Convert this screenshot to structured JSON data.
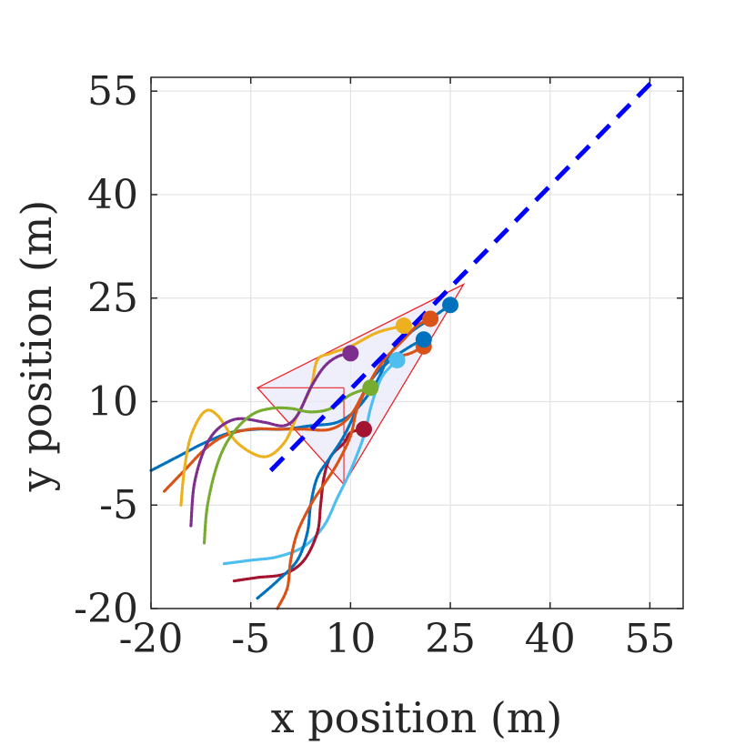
{
  "chart_data": {
    "type": "scatter",
    "title": "",
    "xlabel": "x position (m)",
    "ylabel": "y position (m)",
    "xlim": [
      -20,
      60
    ],
    "ylim": [
      -20,
      57
    ],
    "xticks": [
      -20,
      -5,
      10,
      25,
      40,
      55
    ],
    "yticks": [
      -20,
      -5,
      10,
      25,
      40,
      55
    ],
    "xtick_labels": [
      "-20",
      "-5",
      "10",
      "25",
      "40",
      "55"
    ],
    "ytick_labels": [
      "-20",
      "-5",
      "10",
      "25",
      "40",
      "55"
    ],
    "grid": true,
    "reference_line": {
      "style": "dashed",
      "color": "#0000ff",
      "points": [
        [
          -2,
          0
        ],
        [
          56,
          57
        ]
      ]
    },
    "formation_triangle": {
      "color": "#e8262a",
      "fill": "#e8eaf8",
      "vertices": [
        [
          27,
          27
        ],
        [
          -4,
          12
        ],
        [
          9,
          -2
        ]
      ],
      "inner_lines": [
        [
          [
            9,
            12
          ],
          [
            9,
            -2
          ]
        ],
        [
          [
            -4,
            12
          ],
          [
            9,
            12
          ]
        ]
      ]
    },
    "series": [
      {
        "color": "#0072bd",
        "start": [
          -20,
          0
        ],
        "end": [
          25,
          24
        ],
        "points": [
          [
            -20,
            0
          ],
          [
            -16,
            2
          ],
          [
            -12,
            4
          ],
          [
            -8,
            5.5
          ],
          [
            -4,
            6
          ],
          [
            0,
            6
          ],
          [
            4,
            6.5
          ],
          [
            8,
            7
          ],
          [
            11,
            9
          ],
          [
            14,
            13
          ],
          [
            16,
            17
          ],
          [
            19,
            20
          ],
          [
            22,
            22
          ],
          [
            25,
            24
          ]
        ]
      },
      {
        "color": "#d95319",
        "start": [
          -18,
          -3
        ],
        "end": [
          21,
          18
        ],
        "points": [
          [
            -18,
            -3
          ],
          [
            -15,
            0
          ],
          [
            -12,
            3
          ],
          [
            -9,
            5
          ],
          [
            -5,
            6
          ],
          [
            -1,
            6
          ],
          [
            3,
            6
          ],
          [
            7,
            6
          ],
          [
            10,
            8
          ],
          [
            13,
            13
          ],
          [
            16,
            16
          ],
          [
            19,
            17
          ],
          [
            21,
            18
          ]
        ]
      },
      {
        "color": "#edb120",
        "start": [
          -15.5,
          -5
        ],
        "end": [
          18,
          21
        ],
        "points": [
          [
            -15.5,
            -5
          ],
          [
            -15,
            0
          ],
          [
            -14,
            5
          ],
          [
            -12,
            8.5
          ],
          [
            -10,
            8
          ],
          [
            -7,
            4
          ],
          [
            -3,
            2
          ],
          [
            0,
            4
          ],
          [
            2,
            8
          ],
          [
            4,
            12
          ],
          [
            5,
            16
          ],
          [
            7,
            17
          ],
          [
            10,
            18
          ],
          [
            14,
            20
          ],
          [
            18,
            21
          ]
        ]
      },
      {
        "color": "#7e2f8e",
        "start": [
          -14,
          -8
        ],
        "end": [
          10,
          17
        ],
        "points": [
          [
            -14,
            -8
          ],
          [
            -13.5,
            -2
          ],
          [
            -12,
            3
          ],
          [
            -10,
            6
          ],
          [
            -7,
            7.5
          ],
          [
            -3,
            7
          ],
          [
            0,
            6.5
          ],
          [
            2,
            8
          ],
          [
            4,
            12
          ],
          [
            6,
            15
          ],
          [
            8,
            16.5
          ],
          [
            10,
            17
          ]
        ]
      },
      {
        "color": "#77ac30",
        "start": [
          -12,
          -10.5
        ],
        "end": [
          13,
          12
        ],
        "points": [
          [
            -12,
            -10.5
          ],
          [
            -11.5,
            -5
          ],
          [
            -10,
            1
          ],
          [
            -8,
            5
          ],
          [
            -5,
            8
          ],
          [
            -2,
            9
          ],
          [
            1,
            9
          ],
          [
            4,
            8.5
          ],
          [
            7,
            9
          ],
          [
            10,
            11
          ],
          [
            13,
            12
          ]
        ]
      },
      {
        "color": "#4dbeee",
        "start": [
          -9,
          -13.5
        ],
        "end": [
          17,
          16
        ],
        "points": [
          [
            -9,
            -13.5
          ],
          [
            -5,
            -13
          ],
          [
            -1,
            -12.5
          ],
          [
            3,
            -11
          ],
          [
            6,
            -8
          ],
          [
            8,
            -4
          ],
          [
            10,
            0
          ],
          [
            12,
            5
          ],
          [
            13,
            9
          ],
          [
            14,
            12
          ],
          [
            15,
            14
          ],
          [
            17,
            16
          ]
        ]
      },
      {
        "color": "#a2142f",
        "start": [
          -7.5,
          -16
        ],
        "end": [
          12,
          6
        ],
        "points": [
          [
            -7.5,
            -16
          ],
          [
            -4,
            -15.5
          ],
          [
            0,
            -15
          ],
          [
            3,
            -13
          ],
          [
            5,
            -9
          ],
          [
            5.5,
            -5
          ],
          [
            6,
            -1
          ],
          [
            7,
            2
          ],
          [
            9,
            4
          ],
          [
            10,
            5.5
          ],
          [
            12,
            6
          ]
        ]
      },
      {
        "color": "#0072bd",
        "start": [
          -4,
          -18.5
        ],
        "end": [
          21,
          19
        ],
        "points": [
          [
            -4,
            -18.5
          ],
          [
            -1,
            -16
          ],
          [
            2,
            -13
          ],
          [
            3.5,
            -9
          ],
          [
            4,
            -5
          ],
          [
            5,
            -1
          ],
          [
            7,
            2
          ],
          [
            9,
            5
          ],
          [
            11,
            9
          ],
          [
            13,
            13
          ],
          [
            16,
            16
          ],
          [
            19,
            18
          ],
          [
            21,
            19
          ]
        ]
      },
      {
        "color": "#d95319",
        "start": [
          -1,
          -20
        ],
        "end": [
          22,
          22
        ],
        "points": [
          [
            -1,
            -20
          ],
          [
            0.5,
            -17
          ],
          [
            1,
            -13
          ],
          [
            2,
            -9
          ],
          [
            4,
            -5
          ],
          [
            6,
            -2
          ],
          [
            8,
            1
          ],
          [
            10,
            5
          ],
          [
            11,
            9
          ],
          [
            13,
            13
          ],
          [
            15,
            16
          ],
          [
            18,
            19
          ],
          [
            20,
            21
          ],
          [
            22,
            22
          ]
        ]
      }
    ]
  }
}
